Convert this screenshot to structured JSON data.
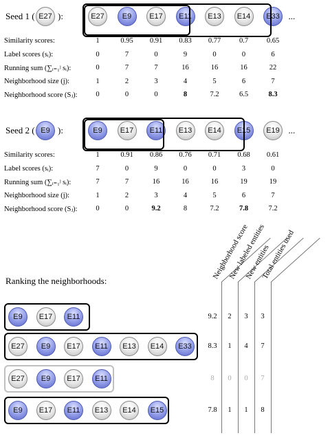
{
  "seed1": {
    "prefix": "Seed 1 (",
    "node": "E27",
    "suffix": "):",
    "entities": [
      {
        "label": "E27",
        "color": "grey"
      },
      {
        "label": "E9",
        "color": "blue"
      },
      {
        "label": "E17",
        "color": "grey"
      },
      {
        "label": "E11",
        "color": "blue"
      },
      {
        "label": "E13",
        "color": "grey"
      },
      {
        "label": "E14",
        "color": "grey"
      },
      {
        "label": "E33",
        "color": "blue"
      }
    ],
    "ellipsis": "...",
    "rows": [
      {
        "label": "Similarity scores:",
        "values": [
          "1",
          "0.95",
          "0.91",
          "0.83",
          "0.77",
          "0.7",
          "0.65"
        ],
        "bold": []
      },
      {
        "label": "Label scores (sᵢ):",
        "values": [
          "0",
          "7",
          "0",
          "9",
          "0",
          "0",
          "6"
        ],
        "bold": []
      },
      {
        "label": "Running sum (∑ᵢ₌₁ʲ sᵢ):",
        "values": [
          "0",
          "7",
          "7",
          "16",
          "16",
          "16",
          "22"
        ],
        "bold": []
      },
      {
        "label": "Neighborhood size (j):",
        "values": [
          "1",
          "2",
          "3",
          "4",
          "5",
          "6",
          "7"
        ],
        "bold": []
      },
      {
        "label": "Neighborhood score (Sⱼ):",
        "values": [
          "0",
          "0",
          "0",
          "8",
          "7.2",
          "6.5",
          "8.3"
        ],
        "bold": [
          3,
          6
        ]
      }
    ]
  },
  "seed2": {
    "prefix": "Seed 2 (",
    "node": "E9",
    "suffix": "):",
    "entities": [
      {
        "label": "E9",
        "color": "blue"
      },
      {
        "label": "E17",
        "color": "grey"
      },
      {
        "label": "E11",
        "color": "blue"
      },
      {
        "label": "E13",
        "color": "grey"
      },
      {
        "label": "E14",
        "color": "grey"
      },
      {
        "label": "E15",
        "color": "blue"
      },
      {
        "label": "E19",
        "color": "grey"
      }
    ],
    "ellipsis": "...",
    "rows": [
      {
        "label": "Similarity scores:",
        "values": [
          "1",
          "0.91",
          "0.86",
          "0.76",
          "0.71",
          "0.68",
          "0.61"
        ],
        "bold": []
      },
      {
        "label": "Label scores (sᵢ):",
        "values": [
          "7",
          "0",
          "9",
          "0",
          "0",
          "3",
          "0"
        ],
        "bold": []
      },
      {
        "label": "Running sum (∑ᵢ₌₁ʲ sᵢ):",
        "values": [
          "7",
          "7",
          "16",
          "16",
          "16",
          "19",
          "19"
        ],
        "bold": []
      },
      {
        "label": "Neighborhood size (j):",
        "values": [
          "1",
          "2",
          "3",
          "4",
          "5",
          "6",
          "7"
        ],
        "bold": []
      },
      {
        "label": "Neighborhood score (Sⱼ):",
        "values": [
          "0",
          "0",
          "9.2",
          "8",
          "7.2",
          "7.8",
          "7.2"
        ],
        "bold": [
          2,
          5
        ]
      }
    ]
  },
  "ranking": {
    "title": "Ranking the neighborhoods:",
    "columns": [
      "Neighborhood score",
      "New labeled entities",
      "New entities",
      "Total entities used"
    ],
    "rows": [
      {
        "entities": [
          {
            "label": "E9",
            "color": "blue"
          },
          {
            "label": "E17",
            "color": "grey"
          },
          {
            "label": "E11",
            "color": "blue"
          }
        ],
        "values": [
          "9.2",
          "2",
          "3",
          "3"
        ],
        "faded": false
      },
      {
        "entities": [
          {
            "label": "E27",
            "color": "grey"
          },
          {
            "label": "E9",
            "color": "blue"
          },
          {
            "label": "E17",
            "color": "grey"
          },
          {
            "label": "E11",
            "color": "blue"
          },
          {
            "label": "E13",
            "color": "grey"
          },
          {
            "label": "E14",
            "color": "grey"
          },
          {
            "label": "E33",
            "color": "blue"
          }
        ],
        "values": [
          "8.3",
          "1",
          "4",
          "7"
        ],
        "faded": false
      },
      {
        "entities": [
          {
            "label": "E27",
            "color": "grey"
          },
          {
            "label": "E9",
            "color": "blue"
          },
          {
            "label": "E17",
            "color": "grey"
          },
          {
            "label": "E11",
            "color": "blue"
          }
        ],
        "values": [
          "8",
          "0",
          "0",
          "7"
        ],
        "faded": true
      },
      {
        "entities": [
          {
            "label": "E9",
            "color": "blue"
          },
          {
            "label": "E17",
            "color": "grey"
          },
          {
            "label": "E11",
            "color": "blue"
          },
          {
            "label": "E13",
            "color": "grey"
          },
          {
            "label": "E14",
            "color": "grey"
          },
          {
            "label": "E15",
            "color": "blue"
          }
        ],
        "values": [
          "7.8",
          "1",
          "1",
          "8"
        ],
        "faded": false
      }
    ]
  },
  "colors": {
    "blue_node": "#8f9ae6",
    "grey_node": "#e6e6e6",
    "faded": "#aaaaaa"
  }
}
